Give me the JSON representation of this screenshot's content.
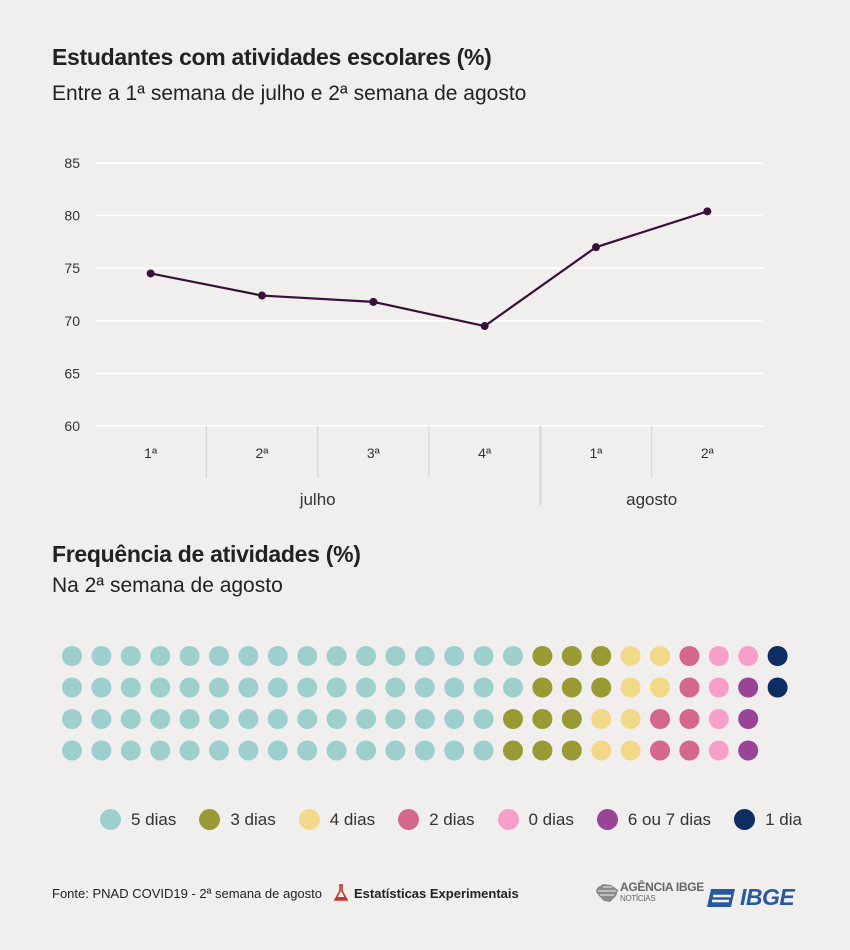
{
  "header": {
    "title": "Estudantes com atividades escolares (%)",
    "subtitle": "Entre a 1ª semana de julho e 2ª semana de agosto"
  },
  "chart_data": [
    {
      "type": "line",
      "title": "Estudantes com atividades escolares (%)",
      "subtitle": "Entre a 1ª semana de julho e 2ª semana de agosto",
      "categories": [
        "1ª",
        "2ª",
        "3ª",
        "4ª",
        "1ª",
        "2ª"
      ],
      "groups": [
        {
          "label": "julho",
          "count": 4
        },
        {
          "label": "agosto",
          "count": 2
        }
      ],
      "values": [
        74.5,
        72.4,
        71.8,
        69.5,
        77.0,
        80.4
      ],
      "yticks": [
        60,
        65,
        70,
        75,
        80,
        85
      ],
      "ylim": [
        60,
        85
      ],
      "color": "#3a0f3a"
    },
    {
      "type": "waffle",
      "title": "Frequência de atividades (%)",
      "subtitle": "Na 2ª semana de agosto",
      "rows": 4,
      "cols": 25,
      "categories": [
        {
          "label": "5 dias",
          "count": 62,
          "color": "#9ecfcf"
        },
        {
          "label": "3 dias",
          "count": 12,
          "color": "#9a9a35"
        },
        {
          "label": "4 dias",
          "count": 8,
          "color": "#f2d98a"
        },
        {
          "label": "2 dias",
          "count": 6,
          "color": "#d4678a"
        },
        {
          "label": "0 dias",
          "count": 5,
          "color": "#f79ecb"
        },
        {
          "label": "6 ou 7 dias",
          "count": 3,
          "color": "#9a4497"
        },
        {
          "label": "1 dia",
          "count": 2,
          "color": "#0d2d63"
        }
      ]
    }
  ],
  "section2": {
    "title": "Frequência de atividades (%)",
    "subtitle": "Na 2ª semana de agosto"
  },
  "footer": {
    "source": "Fonte: PNAD COVID19 - 2ª semana de agosto",
    "experimental": "Estatísticas Experimentais",
    "agencia_line1": "AGÊNCIA IBGE",
    "agencia_line2": "NOTÍCIAS",
    "ibge": "IBGE"
  }
}
